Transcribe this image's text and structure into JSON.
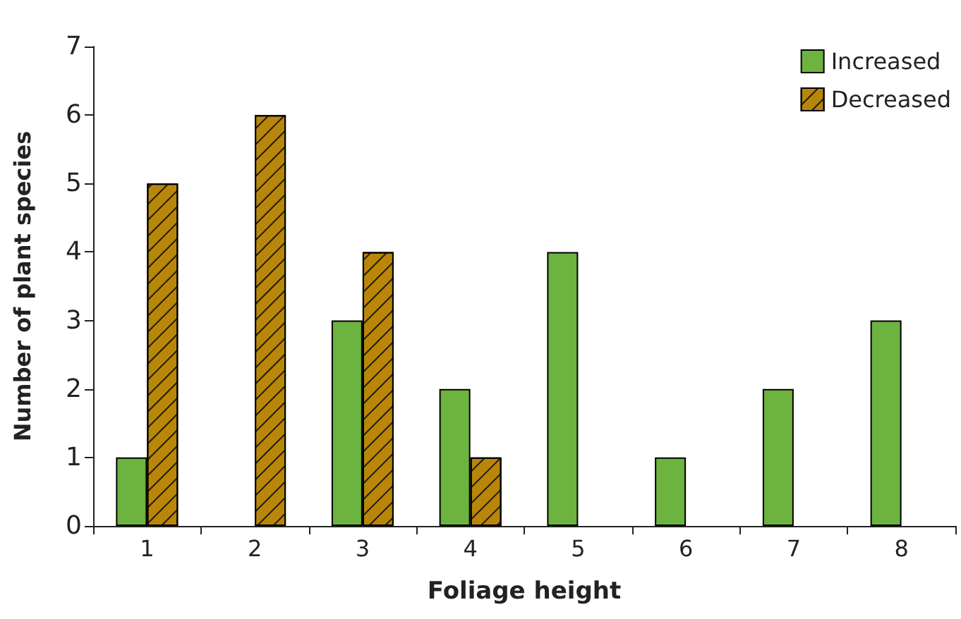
{
  "chart_data": {
    "type": "bar",
    "xlabel": "Foliage height",
    "ylabel": "Number of plant species",
    "categories": [
      "1",
      "2",
      "3",
      "4",
      "5",
      "6",
      "7",
      "8"
    ],
    "series": [
      {
        "name": "Increased",
        "color": "#6db33f",
        "values": [
          1,
          0,
          3,
          2,
          4,
          1,
          2,
          3
        ]
      },
      {
        "name": "Decreased",
        "color": "#b8860b",
        "values": [
          5,
          6,
          4,
          1,
          0,
          0,
          0,
          0
        ]
      }
    ],
    "ylim": [
      0,
      7
    ],
    "yticks": [
      0,
      1,
      2,
      3,
      4,
      5,
      6,
      7
    ],
    "grid": false,
    "legend": "top right"
  }
}
